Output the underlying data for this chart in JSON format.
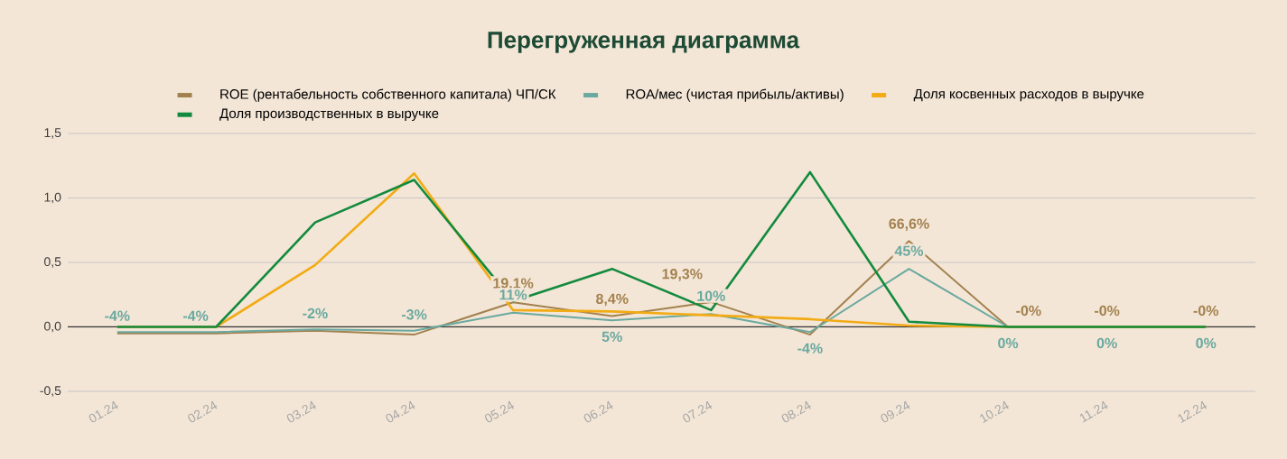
{
  "chart_data": {
    "type": "line",
    "title": "Перегруженная диаграмма",
    "categories": [
      "01.24",
      "02.24",
      "03.24",
      "04.24",
      "05.24",
      "06.24",
      "07.24",
      "08.24",
      "09.24",
      "10.24",
      "11.24",
      "12.24"
    ],
    "series": [
      {
        "name": "ROE (рентабельность собственного капитала) ЧП/СК",
        "color": "#a3814f",
        "values": [
          -0.05,
          -0.05,
          -0.03,
          -0.06,
          0.191,
          0.084,
          0.193,
          -0.06,
          0.666,
          0,
          0,
          0
        ],
        "value_labels": [
          null,
          null,
          null,
          null,
          "19,1%",
          "8,4%",
          "19,3%",
          null,
          "66,6%",
          "-0%",
          "-0%",
          "-0%"
        ]
      },
      {
        "name": "ROA/мес (чистая прибыль/активы)",
        "color": "#6aa9a0",
        "values": [
          -0.04,
          -0.04,
          -0.02,
          -0.03,
          0.11,
          0.05,
          0.1,
          -0.04,
          0.45,
          0,
          0,
          0
        ],
        "value_labels": [
          "-4%",
          "-4%",
          "-2%",
          "-3%",
          "11%",
          "5%",
          "10%",
          "-4%",
          "45%",
          "0%",
          "0%",
          "0%"
        ]
      },
      {
        "name": "Доля косвенных расходов в выручке",
        "color": "#f2ab14",
        "values": [
          0,
          0,
          0.48,
          1.19,
          0.13,
          0.12,
          0.09,
          0.06,
          0.01,
          0,
          0,
          0
        ]
      },
      {
        "name": "Доля производственных в выручке",
        "color": "#138a3e",
        "values": [
          0,
          0,
          0.81,
          1.14,
          0.2,
          0.45,
          0.13,
          1.2,
          0.04,
          0,
          0,
          0
        ]
      }
    ],
    "ylim": [
      -0.5,
      1.5
    ],
    "yticks": [
      {
        "value": -0.5,
        "label": "-0,5"
      },
      {
        "value": 0,
        "label": "0,0"
      },
      {
        "value": 0.5,
        "label": "0,5"
      },
      {
        "value": 1,
        "label": "1,0"
      },
      {
        "value": 1.5,
        "label": "1,5"
      }
    ],
    "grid": "y",
    "legend": "top",
    "marker": "none",
    "line_style": "solid"
  }
}
